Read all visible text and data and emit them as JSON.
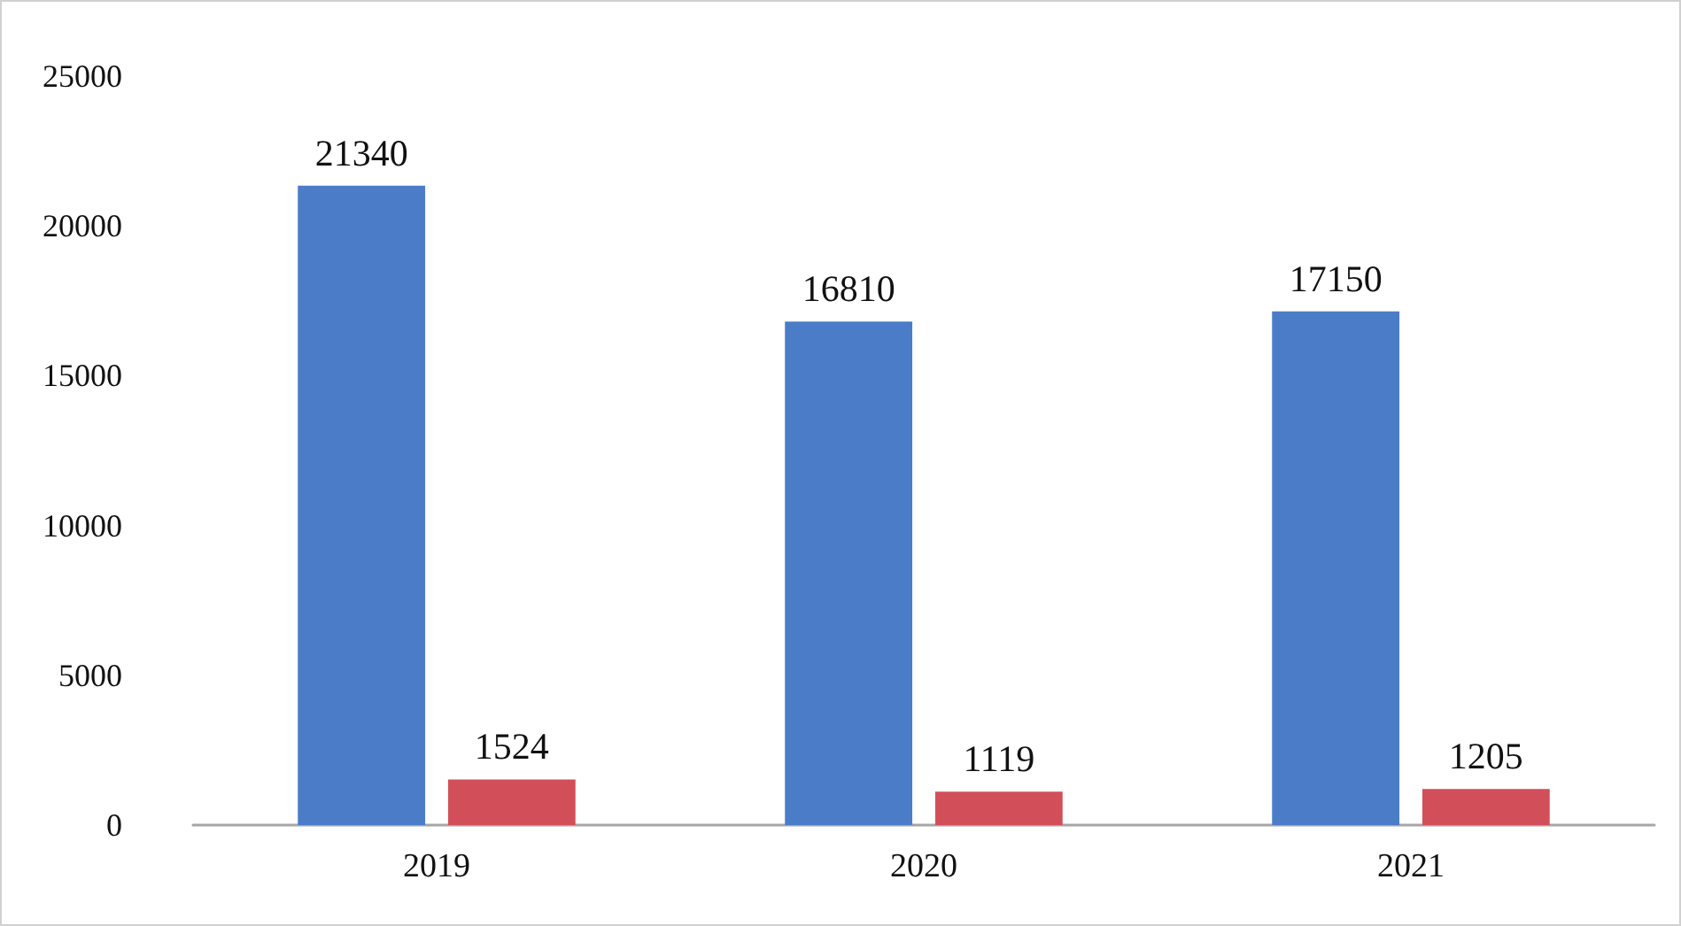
{
  "chart_data": {
    "type": "bar",
    "categories": [
      "2019",
      "2020",
      "2021"
    ],
    "series": [
      {
        "color": "#4a7cc8",
        "values": [
          21340,
          16810,
          17150
        ]
      },
      {
        "color": "#d24f59",
        "values": [
          1524,
          1119,
          1205
        ]
      }
    ],
    "ylim": [
      0,
      25000
    ],
    "yticks": [
      0,
      5000,
      10000,
      15000,
      20000,
      25000
    ],
    "grid": false,
    "data_labels": true
  }
}
